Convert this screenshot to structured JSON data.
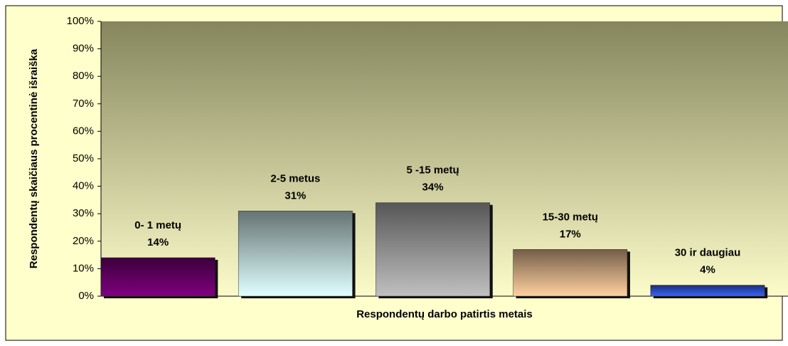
{
  "chart_data": {
    "type": "bar",
    "x_label": "Respondentų darbo patirtis metais",
    "y_label": "Respondentų skaičiaus procentinė išraiška",
    "categories": [
      "0- 1 metų",
      "2-5 metus",
      "5 -15 metų",
      "15-30 metų",
      "30 ir daugiau"
    ],
    "values": [
      14,
      31,
      34,
      17,
      4
    ],
    "value_labels": [
      "14%",
      "31%",
      "34%",
      "17%",
      "4%"
    ],
    "colors": [
      "#800080",
      "#e0ffff",
      "#c0c0c0",
      "#ffd0a0",
      "#3a64ff"
    ],
    "ylim": [
      0,
      100
    ],
    "yticks": [
      {
        "value": 0,
        "label": "0%"
      },
      {
        "value": 10,
        "label": "10%"
      },
      {
        "value": 20,
        "label": "20%"
      },
      {
        "value": 30,
        "label": "30%"
      },
      {
        "value": 40,
        "label": "40%"
      },
      {
        "value": 50,
        "label": "50%"
      },
      {
        "value": 60,
        "label": "60%"
      },
      {
        "value": 70,
        "label": "70%"
      },
      {
        "value": 80,
        "label": "80%"
      },
      {
        "value": 90,
        "label": "90%"
      },
      {
        "value": 100,
        "label": "100%"
      }
    ]
  }
}
